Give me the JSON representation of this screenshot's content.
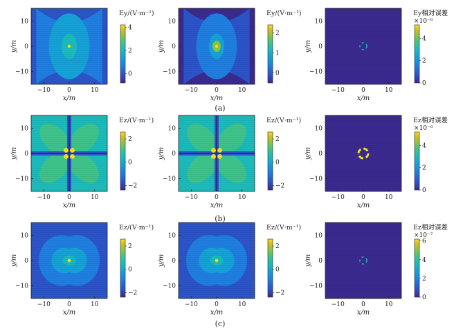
{
  "colors": {
    "c0": "#3a2a8f",
    "c1": "#2c54c8",
    "c2": "#1f7ee0",
    "c3": "#15a2d6",
    "c4": "#1cbbbb",
    "c5": "#3fc38a",
    "c6": "#8cc63f",
    "c7": "#d5bd2a",
    "c8": "#f6e31a",
    "frame": "#222222",
    "background": "#ffffff"
  },
  "figure": {
    "rows": [
      {
        "caption": "(a)"
      },
      {
        "caption": "(b)"
      },
      {
        "caption": "(c)"
      }
    ]
  },
  "chart_data": [
    {
      "type": "heatmap",
      "row": "a",
      "panel": 1,
      "xlabel": "x/m",
      "ylabel": "y/m",
      "xlim": [
        -15,
        15
      ],
      "ylim": [
        -15,
        15
      ],
      "xticks": [
        -10,
        0,
        10
      ],
      "yticks": [
        -10,
        0,
        10
      ],
      "colorbar": {
        "label": "Ey/(V·m⁻¹)",
        "ticks": [
          0,
          2,
          4
        ],
        "range": [
          -0.8,
          4.2
        ],
        "multiplier": ""
      },
      "pattern": "lobe",
      "peak_value": 4
    },
    {
      "type": "heatmap",
      "row": "a",
      "panel": 2,
      "xlabel": "x/m",
      "ylabel": "y/m",
      "xlim": [
        -15,
        15
      ],
      "ylim": [
        -15,
        15
      ],
      "xticks": [
        -10,
        0,
        10
      ],
      "yticks": [
        -10,
        0,
        10
      ],
      "colorbar": {
        "label": "Ey/(V·m⁻¹)",
        "ticks": [
          0,
          1,
          2
        ],
        "range": [
          -0.5,
          2.4
        ],
        "multiplier": ""
      },
      "pattern": "lobe",
      "peak_value": 2
    },
    {
      "type": "heatmap",
      "row": "a",
      "panel": 3,
      "xlabel": "x/m",
      "ylabel": "y/m",
      "xlim": [
        -15,
        15
      ],
      "ylim": [
        -15,
        15
      ],
      "xticks": [
        -10,
        0,
        10
      ],
      "yticks": [
        -10,
        0,
        10
      ],
      "colorbar": {
        "label": "Ey相对误差",
        "ticks": [
          0,
          2,
          4
        ],
        "range": [
          0,
          5.2
        ],
        "multiplier": "×10⁻⁶"
      },
      "pattern": "ring",
      "peak_value": 4
    },
    {
      "type": "heatmap",
      "row": "b",
      "panel": 1,
      "xlabel": "x/m",
      "ylabel": "y/m",
      "xlim": [
        -15,
        15
      ],
      "ylim": [
        -15,
        15
      ],
      "xticks": [
        -10,
        0,
        10
      ],
      "yticks": [
        -10,
        0,
        10
      ],
      "colorbar": {
        "label": "Ez/(V·m⁻¹)",
        "ticks": [
          -2,
          0,
          2
        ],
        "range": [
          -2.4,
          2.6
        ],
        "multiplier": ""
      },
      "pattern": "clover",
      "peak_value": 2
    },
    {
      "type": "heatmap",
      "row": "b",
      "panel": 2,
      "xlabel": "x/m",
      "ylabel": "y/m",
      "xlim": [
        -15,
        15
      ],
      "ylim": [
        -15,
        15
      ],
      "xticks": [
        -10,
        0,
        10
      ],
      "yticks": [
        -10,
        0,
        10
      ],
      "colorbar": {
        "label": "Ez/(V·m⁻¹)",
        "ticks": [
          -2,
          0,
          2
        ],
        "range": [
          -2.4,
          2.6
        ],
        "multiplier": ""
      },
      "pattern": "clover",
      "peak_value": 2
    },
    {
      "type": "heatmap",
      "row": "b",
      "panel": 3,
      "xlabel": "x/m",
      "ylabel": "y/m",
      "xlim": [
        -15,
        15
      ],
      "ylim": [
        -15,
        15
      ],
      "xticks": [
        -10,
        0,
        10
      ],
      "yticks": [
        -10,
        0,
        10
      ],
      "colorbar": {
        "label": "Ez相对误差",
        "ticks": [
          0,
          2,
          4
        ],
        "range": [
          0,
          5.2
        ],
        "multiplier": "×10⁻⁶"
      },
      "pattern": "ring_bold",
      "peak_value": 5
    },
    {
      "type": "heatmap",
      "row": "c",
      "panel": 1,
      "xlabel": "x/m",
      "ylabel": "y/m",
      "xlim": [
        -15,
        15
      ],
      "ylim": [
        -15,
        15
      ],
      "xticks": [
        -10,
        0,
        10
      ],
      "yticks": [
        -10,
        0,
        10
      ],
      "colorbar": {
        "label": "Ez/(V·m⁻¹)",
        "ticks": [
          -2,
          0,
          2
        ],
        "range": [
          -2.4,
          2.6
        ],
        "multiplier": ""
      },
      "pattern": "dipole",
      "peak_value": 2
    },
    {
      "type": "heatmap",
      "row": "c",
      "panel": 2,
      "xlabel": "x/m",
      "ylabel": "y/m",
      "xlim": [
        -15,
        15
      ],
      "ylim": [
        -15,
        15
      ],
      "xticks": [
        -10,
        0,
        10
      ],
      "yticks": [
        -10,
        0,
        10
      ],
      "colorbar": {
        "label": "Ez/(V·m⁻¹)",
        "ticks": [
          -2,
          0,
          2
        ],
        "range": [
          -2.4,
          2.6
        ],
        "multiplier": ""
      },
      "pattern": "dipole",
      "peak_value": 2
    },
    {
      "type": "heatmap",
      "row": "c",
      "panel": 3,
      "xlabel": "x/m",
      "ylabel": "y/m",
      "xlim": [
        -15,
        15
      ],
      "ylim": [
        -15,
        15
      ],
      "xticks": [
        -10,
        0,
        10
      ],
      "yticks": [
        -10,
        0,
        10
      ],
      "colorbar": {
        "label": "Ez相对误差",
        "ticks": [
          0,
          2,
          4,
          6
        ],
        "range": [
          0,
          6.2
        ],
        "multiplier": "×10⁻⁷"
      },
      "pattern": "ring",
      "peak_value": 4
    }
  ]
}
